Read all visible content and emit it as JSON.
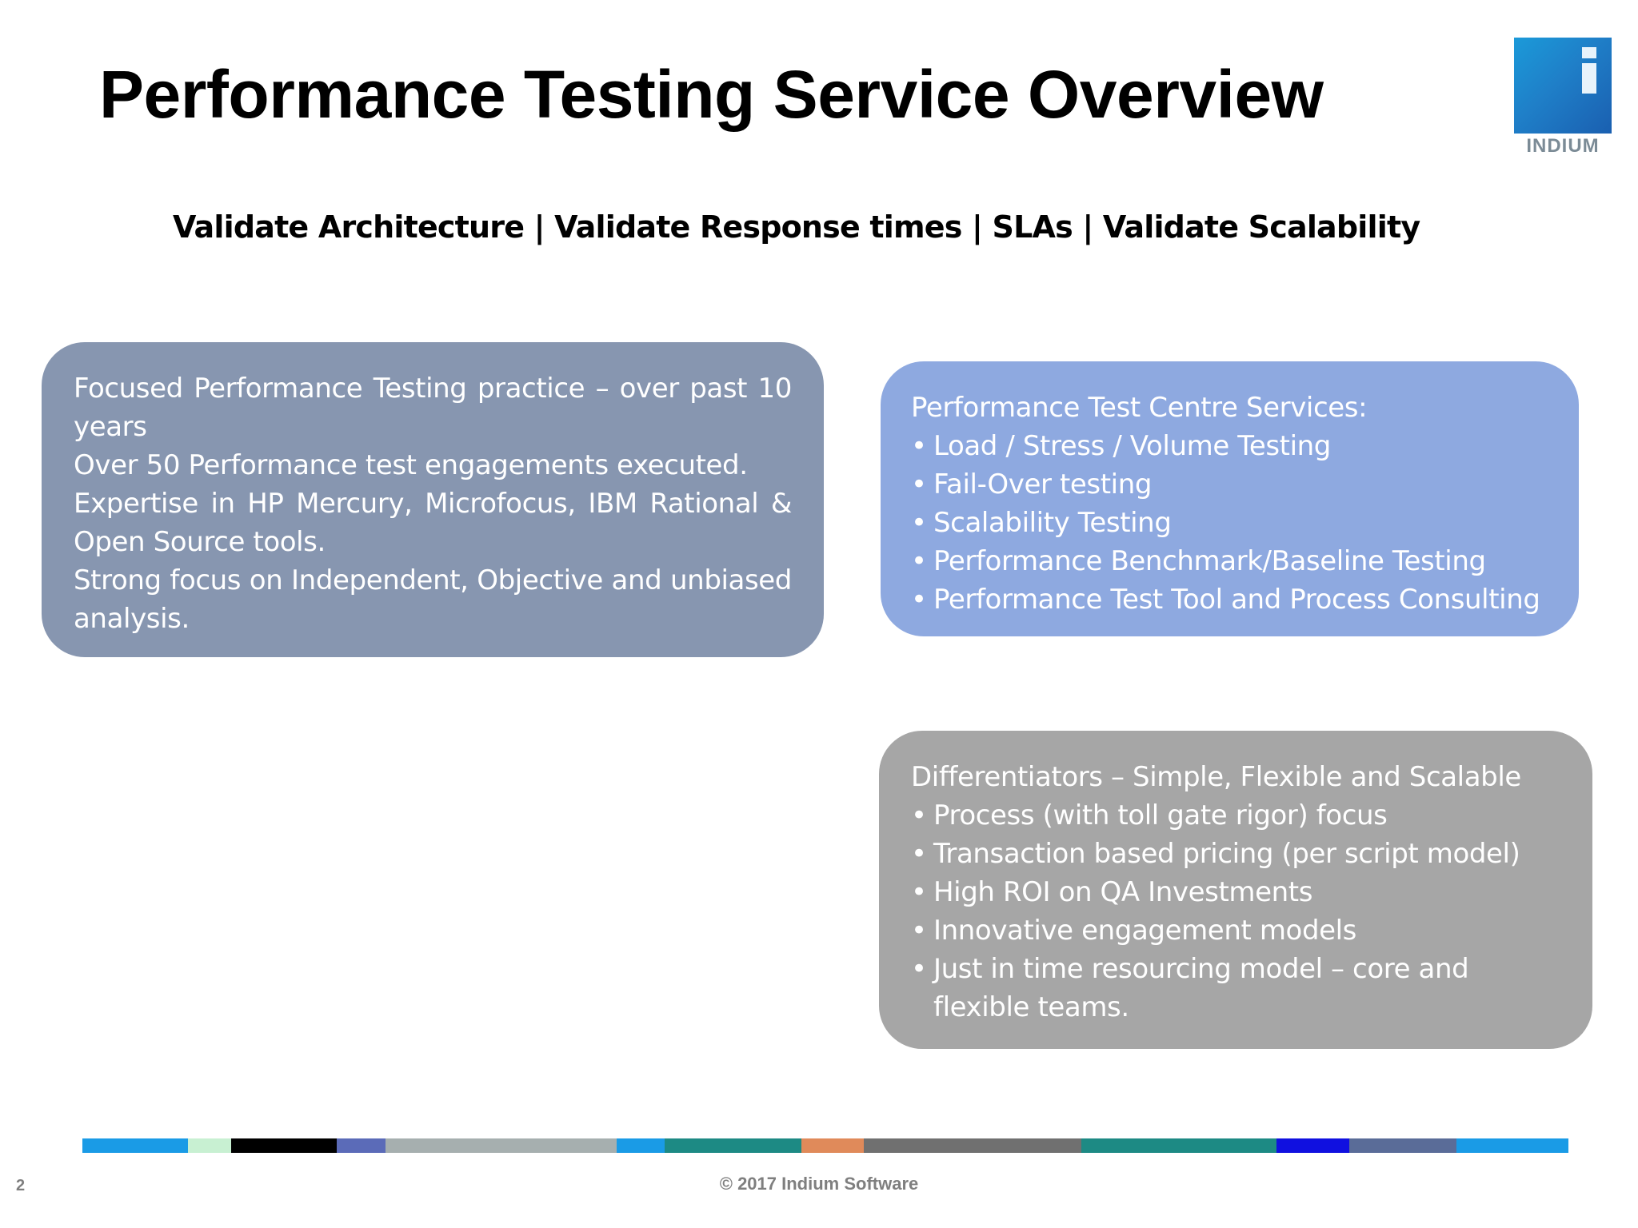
{
  "slide": {
    "title": "Performance Testing Service Overview",
    "subtitle": "Validate Architecture | Validate Response times | SLAs | Validate Scalability",
    "logo_text": "INDIUM",
    "page_number": "2",
    "footer": "© 2017 Indium Software"
  },
  "left_box": {
    "color": "#8796b0",
    "paragraphs": [
      "Focused Performance Testing practice – over past 10 years",
      "Over 50 Performance test engagements executed.",
      "Expertise in HP Mercury, Microfocus, IBM Rational & Open Source tools.",
      "Strong focus on Independent, Objective and unbiased analysis."
    ]
  },
  "services_box": {
    "color": "#8ea9e0",
    "heading": "Performance Test Centre Services:",
    "items": [
      "Load / Stress / Volume Testing",
      "Fail-Over testing",
      "Scalability Testing",
      "Performance Benchmark/Baseline Testing",
      "Performance Test Tool and Process Consulting"
    ]
  },
  "differentiators_box": {
    "color": "#a6a6a6",
    "heading": "Differentiators – Simple, Flexible and Scalable",
    "items": [
      "Process (with toll gate rigor) focus",
      "Transaction based pricing (per script model)",
      "High ROI on QA Investments",
      "Innovative engagement models",
      "Just in time resourcing model – core and flexible teams."
    ]
  },
  "bullet_glyph": "•",
  "color_bar_colors": [
    "#1a9be6",
    "#c8f0d2",
    "#000000",
    "#5b6bb8",
    "#a6afaf",
    "#1a9be6",
    "#1d8a84",
    "#e08a5a",
    "#707070",
    "#1d8a84",
    "#1010e0",
    "#5a6c98",
    "#1a9be6"
  ]
}
